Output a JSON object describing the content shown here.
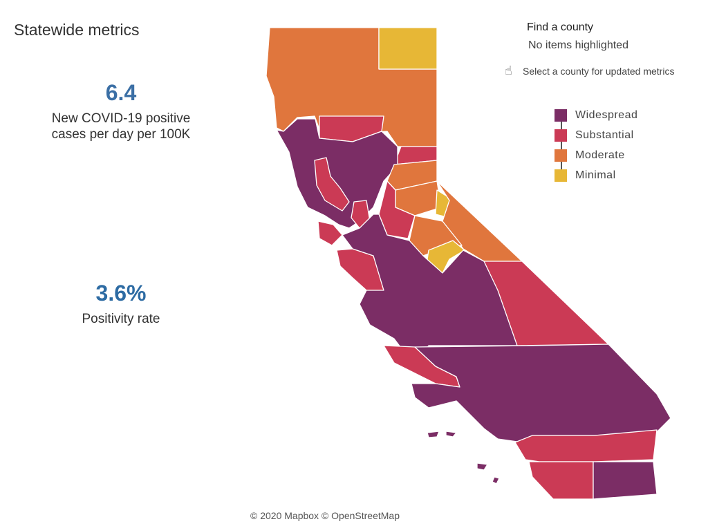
{
  "header": {
    "title": "Statewide metrics"
  },
  "metrics": [
    {
      "value": "6.4",
      "label_line1": "New COVID-19 positive",
      "label_line2": "cases per day per 100K"
    },
    {
      "value": "3.6%",
      "label_line1": "Positivity rate",
      "label_line2": ""
    }
  ],
  "find_county": {
    "title": "Find a county",
    "status": "No items highlighted",
    "hint_icon": "pointer-hand-icon",
    "hint": "Select a county for updated metrics"
  },
  "legend": {
    "items": [
      {
        "label": "Widespread",
        "color": "#7b2d65"
      },
      {
        "label": "Substantial",
        "color": "#cb3a55"
      },
      {
        "label": "Moderate",
        "color": "#e0763d"
      },
      {
        "label": "Minimal",
        "color": "#e7b736"
      }
    ]
  },
  "map": {
    "attribution": "© 2020 Mapbox © OpenStreetMap"
  }
}
